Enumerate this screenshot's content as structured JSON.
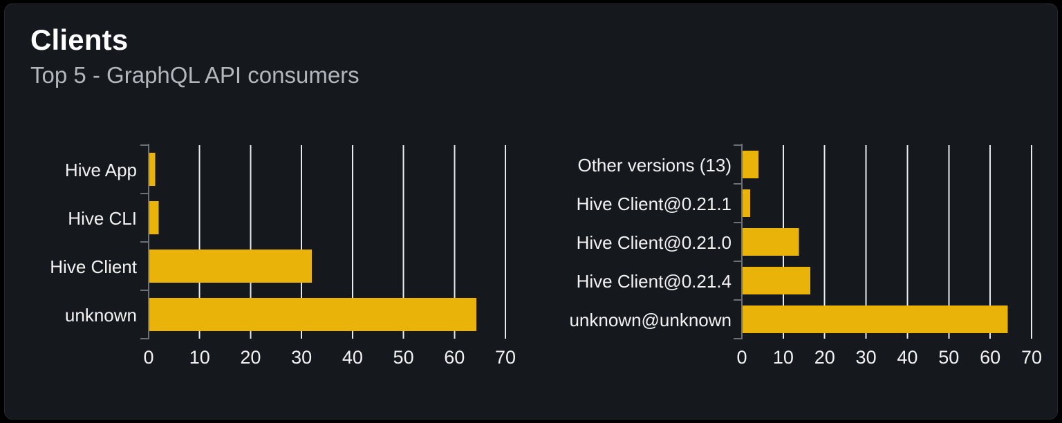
{
  "card": {
    "title": "Clients",
    "subtitle": "Top 5 - GraphQL API consumers"
  },
  "colors": {
    "page_bg": "#000000",
    "card_bg": "#15181d",
    "card_border": "#25282e",
    "bar": "#e9b30a",
    "gridline": "#e7eaf0",
    "axis": "#6e7076",
    "title": "#ffffff",
    "subtitle": "#b3b7bd",
    "label": "#f2f2f3"
  },
  "chart_data": [
    {
      "type": "bar",
      "orientation": "horizontal",
      "name": "clients-by-name",
      "categories": [
        "Hive App",
        "Hive CLI",
        "Hive Client",
        "unknown"
      ],
      "values": [
        1.3,
        2,
        32,
        64.3
      ],
      "xlabel": "",
      "ylabel": "",
      "xlim": [
        0,
        70
      ],
      "xticks": [
        0,
        10,
        20,
        30,
        40,
        50,
        60,
        70
      ],
      "grid": true,
      "legend": false
    },
    {
      "type": "bar",
      "orientation": "horizontal",
      "name": "clients-by-version",
      "categories": [
        "Other versions (13)",
        "Hive Client@0.21.1",
        "Hive Client@0.21.0",
        "Hive Client@0.21.4",
        "unknown@unknown"
      ],
      "values": [
        4,
        2,
        13.8,
        16.5,
        64.2
      ],
      "xlabel": "",
      "ylabel": "",
      "xlim": [
        0,
        70
      ],
      "xticks": [
        0,
        10,
        20,
        30,
        40,
        50,
        60,
        70
      ],
      "grid": true,
      "legend": false
    }
  ]
}
